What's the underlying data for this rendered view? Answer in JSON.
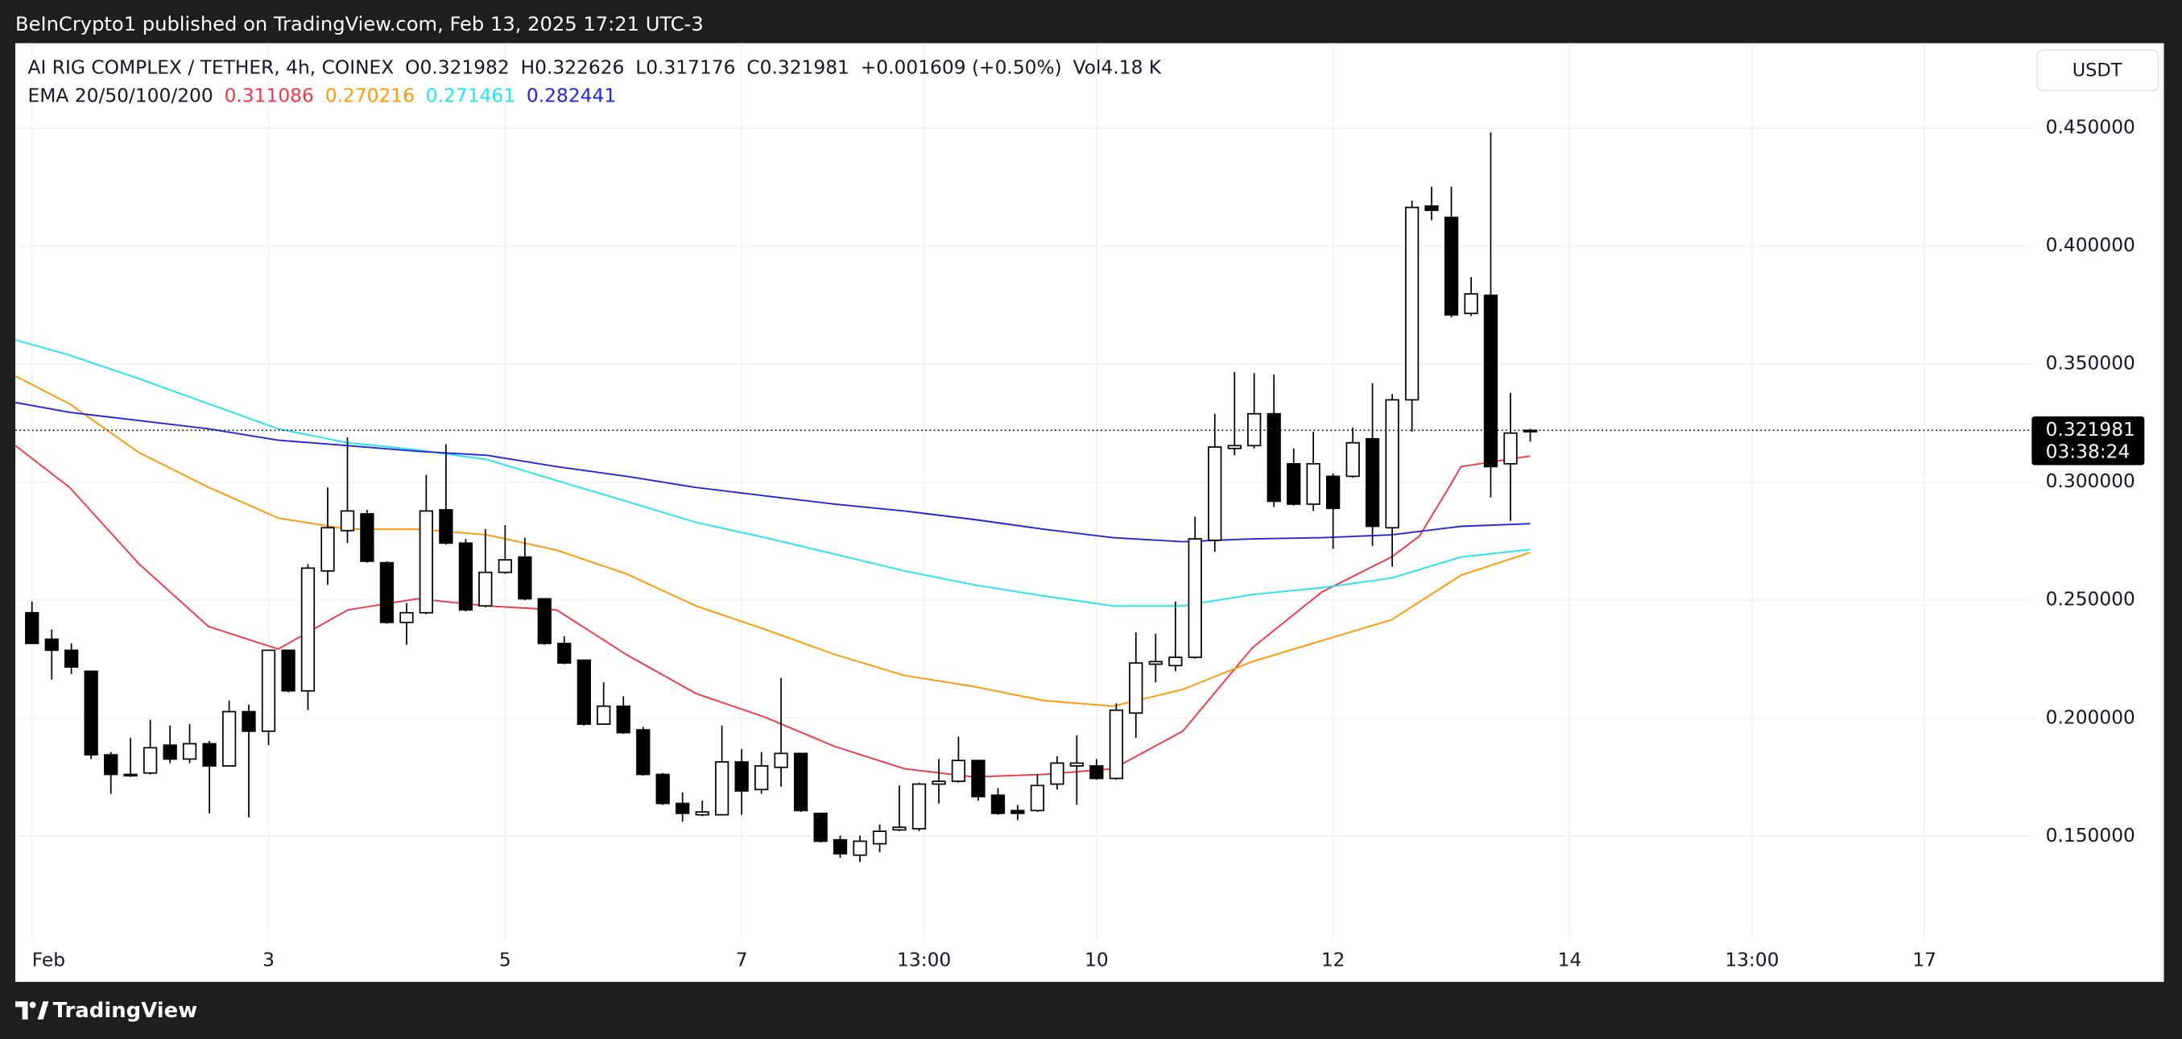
{
  "publisher": "BeInCrypto1 published on TradingView.com, Feb 13, 2025 17:21 UTC-3",
  "brand": "TradingView",
  "currency_button": "USDT",
  "chart_data": {
    "type": "candlestick",
    "title": "AI RIG COMPLEX / TETHER, 4h, COINEX",
    "ohlc_prefixes": [
      "O",
      "H",
      "L",
      "C"
    ],
    "change": "+0.001609 (+0.50%)",
    "volume": "Vol4.18 K",
    "indicator_label": "EMA 20/50/100/200",
    "countdown": "03:38:24",
    "grid": true,
    "up_color": "#ffffff",
    "down_color": "#000000",
    "xlim": [
      0.859,
      17.93
    ],
    "ylim": [
      0.106,
      0.486
    ],
    "xticks": [
      {
        "value": 1,
        "label": "Feb"
      },
      3,
      5,
      7,
      {
        "value": 8.542,
        "label": "13:00"
      },
      10,
      12,
      14,
      {
        "value": 15.542,
        "label": "13:00"
      },
      17
    ],
    "yticks": [
      {
        "value": 0.15,
        "label": "0.150000"
      },
      {
        "value": 0.2,
        "label": "0.200000"
      },
      {
        "value": 0.25,
        "label": "0.250000"
      },
      {
        "value": 0.3,
        "label": "0.300000"
      },
      {
        "value": 0.35,
        "label": "0.350000"
      },
      {
        "value": 0.4,
        "label": "0.400000"
      },
      {
        "value": 0.45,
        "label": "0.450000"
      }
    ],
    "x": [
      1,
      1.167,
      1.333,
      1.5,
      1.667,
      1.833,
      2,
      2.167,
      2.333,
      2.5,
      2.667,
      2.833,
      3,
      3.167,
      3.333,
      3.5,
      3.667,
      3.833,
      4,
      4.167,
      4.333,
      4.5,
      4.667,
      4.833,
      5,
      5.167,
      5.333,
      5.5,
      5.667,
      5.833,
      6,
      6.167,
      6.333,
      6.5,
      6.667,
      6.833,
      7,
      7.167,
      7.333,
      7.5,
      7.667,
      7.833,
      8,
      8.167,
      8.333,
      8.5,
      8.667,
      8.833,
      9,
      9.167,
      9.333,
      9.5,
      9.667,
      9.833,
      10,
      10.167,
      10.333,
      10.5,
      10.667,
      10.833,
      11,
      11.167,
      11.333,
      11.5,
      11.667,
      11.833,
      12,
      12.167,
      12.333,
      12.5,
      12.667,
      12.833,
      13,
      13.167,
      13.333,
      13.5,
      13.667
    ],
    "open": [
      0.2447,
      0.2335,
      0.2288,
      0.2199,
      0.1845,
      0.1762,
      0.1768,
      0.1886,
      0.1827,
      0.1892,
      0.1798,
      0.2028,
      0.1945,
      0.2288,
      0.2116,
      0.2624,
      0.2795,
      0.2866,
      0.2659,
      0.2406,
      0.2447,
      0.2883,
      0.2742,
      0.2476,
      0.2618,
      0.2683,
      0.2506,
      0.2317,
      0.2246,
      0.1975,
      0.2051,
      0.1951,
      0.1762,
      0.1639,
      0.1591,
      0.1591,
      0.1815,
      0.1698,
      0.1792,
      0.1851,
      0.1597,
      0.1485,
      0.142,
      0.1468,
      0.1527,
      0.1532,
      0.1721,
      0.1733,
      0.1821,
      0.1674,
      0.1609,
      0.1609,
      0.1721,
      0.1798,
      0.1798,
      0.1745,
      0.2022,
      0.2229,
      0.2223,
      0.2258,
      0.2754,
      0.3143,
      0.3155,
      0.329,
      0.3078,
      0.2907,
      0.3025,
      0.3025,
      0.3184,
      0.2807,
      0.3349,
      0.417,
      0.4122,
      0.3715,
      0.3792,
      0.3078,
      0.321982
    ],
    "high": [
      0.2494,
      0.2376,
      0.2317,
      0.2199,
      0.1857,
      0.1916,
      0.1993,
      0.1969,
      0.1975,
      0.1904,
      0.2075,
      0.2057,
      0.2288,
      0.2288,
      0.2653,
      0.2978,
      0.319,
      0.2883,
      0.2665,
      0.2488,
      0.3031,
      0.3161,
      0.276,
      0.2801,
      0.2818,
      0.2765,
      0.2506,
      0.2347,
      0.2246,
      0.2152,
      0.2093,
      0.1963,
      0.1768,
      0.1686,
      0.1651,
      0.1969,
      0.1869,
      0.1857,
      0.217,
      0.1851,
      0.1597,
      0.1503,
      0.1503,
      0.155,
      0.1715,
      0.1727,
      0.1827,
      0.1922,
      0.1821,
      0.1704,
      0.1633,
      0.1762,
      0.1839,
      0.1928,
      0.1827,
      0.2063,
      0.2364,
      0.2358,
      0.2494,
      0.2854,
      0.329,
      0.3467,
      0.3462,
      0.3456,
      0.3143,
      0.3214,
      0.3037,
      0.3232,
      0.342,
      0.3373,
      0.4193,
      0.4252,
      0.4252,
      0.3869,
      0.4482,
      0.3379,
      0.322626
    ],
    "low": [
      0.2317,
      0.2164,
      0.2187,
      0.1827,
      0.168,
      0.1751,
      0.1762,
      0.181,
      0.181,
      0.1597,
      0.1798,
      0.158,
      0.1886,
      0.211,
      0.2034,
      0.2565,
      0.2742,
      0.2659,
      0.24,
      0.2311,
      0.2441,
      0.2736,
      0.2453,
      0.247,
      0.2612,
      0.25,
      0.2311,
      0.2229,
      0.1969,
      0.1975,
      0.1934,
      0.1757,
      0.1633,
      0.1562,
      0.1585,
      0.1591,
      0.1591,
      0.168,
      0.171,
      0.1603,
      0.1474,
      0.1409,
      0.1391,
      0.1432,
      0.1521,
      0.1521,
      0.1639,
      0.1727,
      0.1651,
      0.1591,
      0.1568,
      0.1603,
      0.1698,
      0.1633,
      0.1739,
      0.1739,
      0.1916,
      0.2152,
      0.2199,
      0.2252,
      0.2706,
      0.3114,
      0.3143,
      0.2895,
      0.2901,
      0.2878,
      0.2718,
      0.3019,
      0.273,
      0.2642,
      0.3214,
      0.411,
      0.3698,
      0.3704,
      0.2936,
      0.2836,
      0.317176
    ],
    "close": [
      0.2317,
      0.2288,
      0.2217,
      0.1845,
      0.1762,
      0.1757,
      0.1875,
      0.1827,
      0.1892,
      0.1798,
      0.2028,
      0.1945,
      0.2288,
      0.2116,
      0.2636,
      0.2807,
      0.2878,
      0.2665,
      0.2406,
      0.2447,
      0.2878,
      0.2742,
      0.2459,
      0.2618,
      0.2671,
      0.2506,
      0.2317,
      0.2234,
      0.1975,
      0.2051,
      0.1939,
      0.1762,
      0.1639,
      0.1597,
      0.1603,
      0.1815,
      0.1692,
      0.1798,
      0.1851,
      0.1609,
      0.1479,
      0.1426,
      0.1479,
      0.1521,
      0.1538,
      0.1721,
      0.1733,
      0.1821,
      0.1668,
      0.1597,
      0.1597,
      0.1715,
      0.181,
      0.181,
      0.1745,
      0.2034,
      0.2234,
      0.224,
      0.2258,
      0.276,
      0.3149,
      0.3155,
      0.329,
      0.2919,
      0.2907,
      0.3078,
      0.2889,
      0.3167,
      0.2813,
      0.3349,
      0.4164,
      0.4152,
      0.3709,
      0.3798,
      0.3066,
      0.3208,
      0.321981
    ],
    "series": [
      {
        "color": "#f23645",
        "x": [
          0.859,
          1.318,
          1.906,
          2.494,
          3.082,
          3.671,
          4.259,
          4.847,
          5.435,
          6.024,
          6.612,
          7.2,
          7.788,
          8.376,
          8.965,
          9.553,
          10.141,
          10.729,
          11.318,
          11.906,
          12.494,
          12.729,
          12.965,
          13.082,
          13.667
        ],
        "values": [
          0.3155,
          0.2978,
          0.2653,
          0.2388,
          0.2293,
          0.2459,
          0.2506,
          0.2476,
          0.2459,
          0.227,
          0.2105,
          0.2004,
          0.188,
          0.1786,
          0.1751,
          0.1762,
          0.1786,
          0.1945,
          0.2299,
          0.2535,
          0.2683,
          0.2771,
          0.2966,
          0.3066,
          0.311086
        ]
      },
      {
        "color": "#ff9800",
        "x": [
          0.859,
          1.318,
          1.906,
          2.494,
          3.082,
          3.671,
          4.259,
          4.847,
          5.435,
          6.024,
          6.612,
          7.2,
          7.788,
          8.376,
          8.965,
          9.553,
          10.141,
          10.729,
          11.318,
          11.906,
          12.494,
          13.082,
          13.667
        ],
        "values": [
          0.345,
          0.3332,
          0.3125,
          0.2978,
          0.2848,
          0.2801,
          0.2801,
          0.2777,
          0.2712,
          0.2612,
          0.2476,
          0.2376,
          0.227,
          0.2181,
          0.2134,
          0.2075,
          0.2051,
          0.2122,
          0.224,
          0.2329,
          0.2417,
          0.2606,
          0.270216
        ]
      },
      {
        "color": "#22e3f0",
        "x": [
          0.859,
          1.318,
          1.906,
          2.494,
          3.082,
          3.671,
          4.259,
          4.847,
          5.435,
          6.024,
          6.612,
          7.2,
          7.788,
          8.376,
          8.965,
          9.553,
          10.141,
          10.729,
          11.318,
          11.906,
          12.494,
          13.082,
          13.667
        ],
        "values": [
          0.3603,
          0.3538,
          0.3438,
          0.3332,
          0.3226,
          0.3167,
          0.3137,
          0.3096,
          0.3007,
          0.2919,
          0.283,
          0.2765,
          0.2695,
          0.2624,
          0.2565,
          0.2518,
          0.2476,
          0.2476,
          0.2524,
          0.2553,
          0.2594,
          0.2683,
          0.271461
        ]
      },
      {
        "color": "#2424e0",
        "x": [
          0.859,
          1.318,
          1.906,
          2.494,
          3.082,
          3.671,
          4.259,
          4.847,
          5.435,
          6.024,
          6.612,
          7.2,
          7.788,
          8.376,
          8.965,
          9.553,
          10.141,
          10.729,
          11.318,
          11.906,
          12.494,
          13.082,
          13.667
        ],
        "values": [
          0.3338,
          0.3296,
          0.3261,
          0.3226,
          0.3178,
          0.3155,
          0.3131,
          0.3114,
          0.3066,
          0.3025,
          0.2978,
          0.2942,
          0.2907,
          0.2878,
          0.2842,
          0.2801,
          0.2765,
          0.2748,
          0.276,
          0.2765,
          0.2777,
          0.2813,
          0.282441
        ]
      }
    ]
  }
}
